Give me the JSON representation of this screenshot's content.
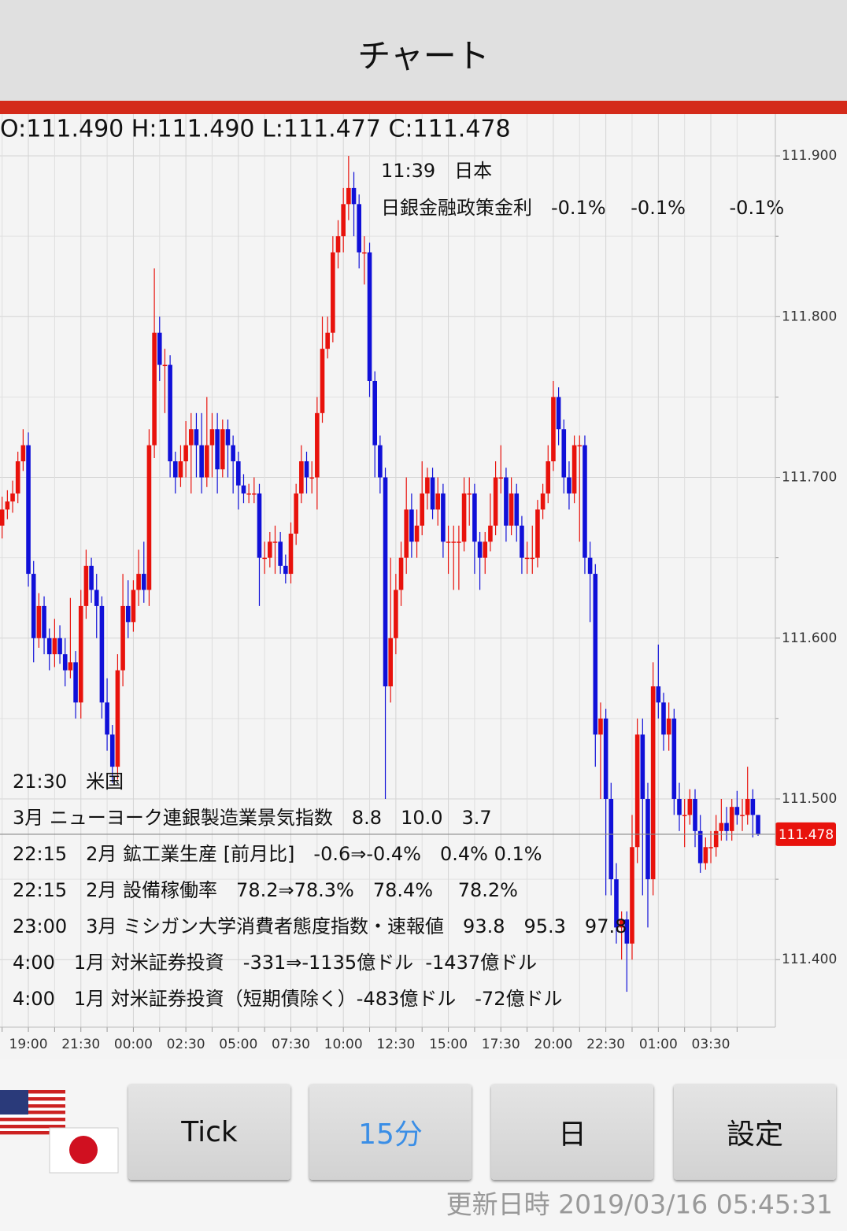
{
  "header": {
    "title": "チャート"
  },
  "chart_data": {
    "type": "candlestick",
    "ohlc_text": "O:111.490 H:111.490 L:111.477 C:111.478",
    "categories": [
      null,
      null,
      null,
      null,
      null,
      "19:00",
      null,
      null,
      null,
      null,
      null,
      null,
      null,
      null,
      null,
      "21:30",
      null,
      null,
      null,
      null,
      null,
      null,
      null,
      null,
      null,
      "00:00",
      null,
      null,
      null,
      null,
      null,
      null,
      null,
      null,
      null,
      "02:30",
      null,
      null,
      null,
      null,
      null,
      null,
      null,
      null,
      null,
      "05:00",
      null,
      null,
      null,
      null,
      null,
      null,
      null,
      null,
      null,
      "07:30",
      null,
      null,
      null,
      null,
      null,
      null,
      null,
      null,
      null,
      "10:00",
      null,
      null,
      null,
      null,
      null,
      null,
      null,
      null,
      null,
      "12:30",
      null,
      null,
      null,
      null,
      null,
      null,
      null,
      null,
      null,
      "15:00",
      null,
      null,
      null,
      null,
      null,
      null,
      null,
      null,
      null,
      "17:30",
      null,
      null,
      null,
      null,
      null,
      null,
      null,
      null,
      null,
      "20:00",
      null,
      null,
      null,
      null,
      null,
      null,
      null,
      null,
      null,
      "22:30",
      null,
      null,
      null,
      null,
      null,
      null,
      null,
      null,
      null,
      "01:00",
      null,
      null,
      null,
      null,
      null,
      null,
      null,
      null,
      null,
      "03:30",
      null,
      null,
      null,
      null,
      null,
      null,
      null,
      null,
      null
    ],
    "open": [
      111.67,
      111.68,
      111.685,
      111.69,
      111.71,
      111.72,
      111.64,
      111.6,
      111.62,
      111.6,
      111.59,
      111.6,
      111.59,
      111.58,
      111.585,
      111.56,
      111.62,
      111.645,
      111.63,
      111.62,
      111.56,
      111.54,
      111.52,
      111.58,
      111.62,
      111.61,
      111.63,
      111.64,
      111.63,
      111.72,
      111.79,
      111.77,
      111.77,
      111.71,
      111.7,
      111.71,
      111.72,
      111.73,
      111.72,
      111.7,
      111.72,
      111.73,
      111.705,
      111.73,
      111.72,
      111.71,
      111.695,
      111.69,
      111.69,
      111.69,
      111.65,
      111.65,
      111.66,
      111.66,
      111.645,
      111.64,
      111.665,
      111.69,
      111.71,
      111.7,
      111.7,
      111.74,
      111.78,
      111.79,
      111.84,
      111.85,
      111.87,
      111.88,
      111.87,
      111.84,
      111.84,
      111.76,
      111.72,
      111.7,
      111.57,
      111.6,
      111.63,
      111.65,
      111.68,
      111.66,
      111.67,
      111.69,
      111.7,
      111.68,
      111.69,
      111.66,
      111.66,
      111.66,
      111.66,
      111.69,
      111.69,
      111.66,
      111.65,
      111.66,
      111.67,
      111.7,
      111.7,
      111.67,
      111.69,
      111.67,
      111.65,
      111.65,
      111.65,
      111.68,
      111.69,
      111.71,
      111.75,
      111.73,
      111.7,
      111.69,
      111.72,
      111.72,
      111.65,
      111.64,
      111.54,
      111.55,
      111.5,
      111.45,
      111.42,
      111.425,
      111.41,
      111.47,
      111.54,
      111.5,
      111.45,
      111.57,
      111.56,
      111.54,
      111.55,
      111.5,
      111.49,
      111.49,
      111.5,
      111.48,
      111.46,
      111.47,
      111.47,
      111.48,
      111.485,
      111.48,
      111.495,
      111.49,
      111.49,
      111.5,
      111.49
    ],
    "high": [
      111.688,
      111.692,
      111.698,
      111.716,
      111.73,
      111.728,
      111.648,
      111.628,
      111.626,
      111.606,
      111.612,
      111.608,
      111.6,
      111.625,
      111.592,
      111.63,
      111.655,
      111.65,
      111.64,
      111.626,
      111.575,
      111.546,
      111.59,
      111.64,
      111.636,
      111.636,
      111.655,
      111.66,
      111.73,
      111.83,
      111.8,
      111.78,
      111.776,
      111.716,
      111.72,
      111.735,
      111.74,
      111.74,
      111.74,
      111.75,
      111.74,
      111.74,
      111.736,
      111.736,
      111.726,
      111.716,
      111.702,
      111.696,
      111.7,
      111.696,
      111.66,
      111.666,
      111.67,
      111.666,
      111.652,
      111.672,
      111.696,
      111.72,
      111.716,
      111.71,
      111.75,
      111.8,
      111.8,
      111.85,
      111.86,
      111.88,
      111.9,
      111.89,
      111.876,
      111.85,
      111.846,
      111.766,
      111.726,
      111.706,
      111.65,
      111.64,
      111.66,
      111.7,
      111.69,
      111.68,
      111.71,
      111.706,
      111.706,
      111.7,
      111.696,
      111.67,
      111.67,
      111.67,
      111.7,
      111.7,
      111.696,
      111.666,
      111.666,
      111.69,
      111.71,
      111.72,
      111.706,
      111.7,
      111.696,
      111.676,
      111.66,
      111.67,
      111.686,
      111.696,
      111.72,
      111.76,
      111.756,
      111.736,
      111.71,
      111.726,
      111.726,
      111.726,
      111.66,
      111.646,
      111.56,
      111.556,
      111.51,
      111.46,
      111.43,
      111.43,
      111.49,
      111.55,
      111.55,
      111.51,
      111.585,
      111.596,
      111.566,
      111.56,
      111.556,
      111.51,
      111.5,
      111.506,
      111.506,
      111.49,
      111.476,
      111.48,
      111.49,
      111.5,
      111.495,
      111.5,
      111.505,
      111.5,
      111.52,
      111.506,
      111.49
    ],
    "low": [
      111.662,
      111.674,
      111.678,
      111.684,
      111.704,
      111.632,
      111.585,
      111.594,
      111.59,
      111.58,
      111.582,
      111.584,
      111.57,
      111.575,
      111.55,
      111.55,
      111.612,
      111.622,
      111.6,
      111.55,
      111.53,
      111.51,
      111.512,
      111.57,
      111.6,
      111.604,
      111.62,
      111.622,
      111.62,
      111.712,
      111.76,
      111.74,
      111.7,
      111.69,
      111.694,
      111.7,
      111.69,
      111.7,
      111.69,
      111.694,
      111.7,
      111.69,
      111.7,
      111.7,
      111.69,
      111.68,
      111.684,
      111.684,
      111.684,
      111.62,
      111.64,
      111.644,
      111.64,
      111.64,
      111.634,
      111.634,
      111.658,
      111.684,
      111.69,
      111.69,
      111.68,
      111.734,
      111.774,
      111.784,
      111.83,
      111.84,
      111.86,
      111.85,
      111.83,
      111.82,
      111.75,
      111.7,
      111.69,
      111.5,
      111.56,
      111.59,
      111.62,
      111.64,
      111.65,
      111.65,
      111.664,
      111.68,
      111.674,
      111.67,
      111.65,
      111.64,
      111.63,
      111.63,
      111.654,
      111.67,
      111.64,
      111.63,
      111.64,
      111.654,
      111.664,
      111.69,
      111.66,
      111.664,
      111.66,
      111.64,
      111.64,
      111.64,
      111.644,
      111.674,
      111.684,
      111.704,
      111.72,
      111.69,
      111.68,
      111.684,
      111.66,
      111.64,
      111.61,
      111.52,
      111.5,
      111.44,
      111.44,
      111.41,
      111.4,
      111.38,
      111.4,
      111.46,
      111.44,
      111.42,
      111.44,
      111.55,
      111.53,
      111.53,
      111.49,
      111.48,
      111.47,
      111.484,
      111.47,
      111.454,
      111.456,
      111.46,
      111.464,
      111.474,
      111.474,
      111.474,
      111.484,
      111.48,
      111.484,
      111.476,
      111.477
    ],
    "close": [
      111.68,
      111.685,
      111.69,
      111.71,
      111.72,
      111.64,
      111.6,
      111.62,
      111.6,
      111.59,
      111.6,
      111.59,
      111.58,
      111.585,
      111.56,
      111.62,
      111.645,
      111.63,
      111.62,
      111.56,
      111.54,
      111.52,
      111.58,
      111.62,
      111.61,
      111.63,
      111.64,
      111.63,
      111.72,
      111.79,
      111.77,
      111.77,
      111.71,
      111.7,
      111.71,
      111.72,
      111.73,
      111.72,
      111.7,
      111.72,
      111.73,
      111.705,
      111.73,
      111.72,
      111.71,
      111.695,
      111.69,
      111.69,
      111.69,
      111.65,
      111.65,
      111.66,
      111.66,
      111.645,
      111.64,
      111.665,
      111.69,
      111.71,
      111.7,
      111.7,
      111.74,
      111.78,
      111.79,
      111.84,
      111.85,
      111.87,
      111.88,
      111.87,
      111.84,
      111.84,
      111.76,
      111.72,
      111.7,
      111.57,
      111.6,
      111.63,
      111.65,
      111.68,
      111.66,
      111.67,
      111.69,
      111.7,
      111.68,
      111.69,
      111.66,
      111.66,
      111.66,
      111.66,
      111.69,
      111.69,
      111.66,
      111.65,
      111.66,
      111.67,
      111.7,
      111.7,
      111.67,
      111.69,
      111.67,
      111.65,
      111.65,
      111.65,
      111.68,
      111.69,
      111.71,
      111.75,
      111.73,
      111.7,
      111.69,
      111.72,
      111.72,
      111.65,
      111.64,
      111.54,
      111.55,
      111.5,
      111.45,
      111.42,
      111.425,
      111.41,
      111.47,
      111.54,
      111.5,
      111.45,
      111.57,
      111.56,
      111.54,
      111.55,
      111.5,
      111.49,
      111.49,
      111.5,
      111.48,
      111.46,
      111.47,
      111.47,
      111.48,
      111.485,
      111.48,
      111.495,
      111.49,
      111.49,
      111.5,
      111.49,
      111.478
    ],
    "colors": {
      "up": "#e8120c",
      "down": "#1010d8"
    },
    "ylim": [
      111.358,
      111.925
    ],
    "yticks": [
      {
        "value": 111.4,
        "label": "111.400"
      },
      {
        "value": 111.5,
        "label": "111.500"
      },
      {
        "value": 111.6,
        "label": "111.600"
      },
      {
        "value": 111.7,
        "label": "111.700"
      },
      {
        "value": 111.8,
        "label": "111.800"
      },
      {
        "value": 111.9,
        "label": "111.900"
      }
    ],
    "y_minor_ticks": [
      111.45,
      111.55,
      111.65,
      111.75,
      111.85
    ],
    "grid": true,
    "annotations": [
      "11:39　日本",
      "日銀金融政策金利　-0.1%　 -0.1%　　 -0.1%",
      "21:30　米国",
      "3月 ニューヨーク連銀製造業景気指数　8.8　10.0　3.7",
      "22:15　2月 鉱工業生産 [前月比]　-0.6⇒-0.4%　0.4% 0.1%",
      "22:15　2月 設備稼働率　78.2⇒78.3%　78.4%　 78.2%",
      "23:00　3月 ミシガン大学消費者態度指数・速報値　93.8　95.3　97.8",
      "4:00　1月 対米証券投資　-331⇒-1135億ドル  -1437億ドル",
      "4:00　1月 対米証券投資（短期債除く）-483億ドル　-72億ドル"
    ]
  },
  "buttons": [
    "Tick",
    "15分",
    "日",
    "設定"
  ],
  "selected_button": 1,
  "footer": {
    "updated": "更新日時 2019/03/16 05:45:31"
  }
}
